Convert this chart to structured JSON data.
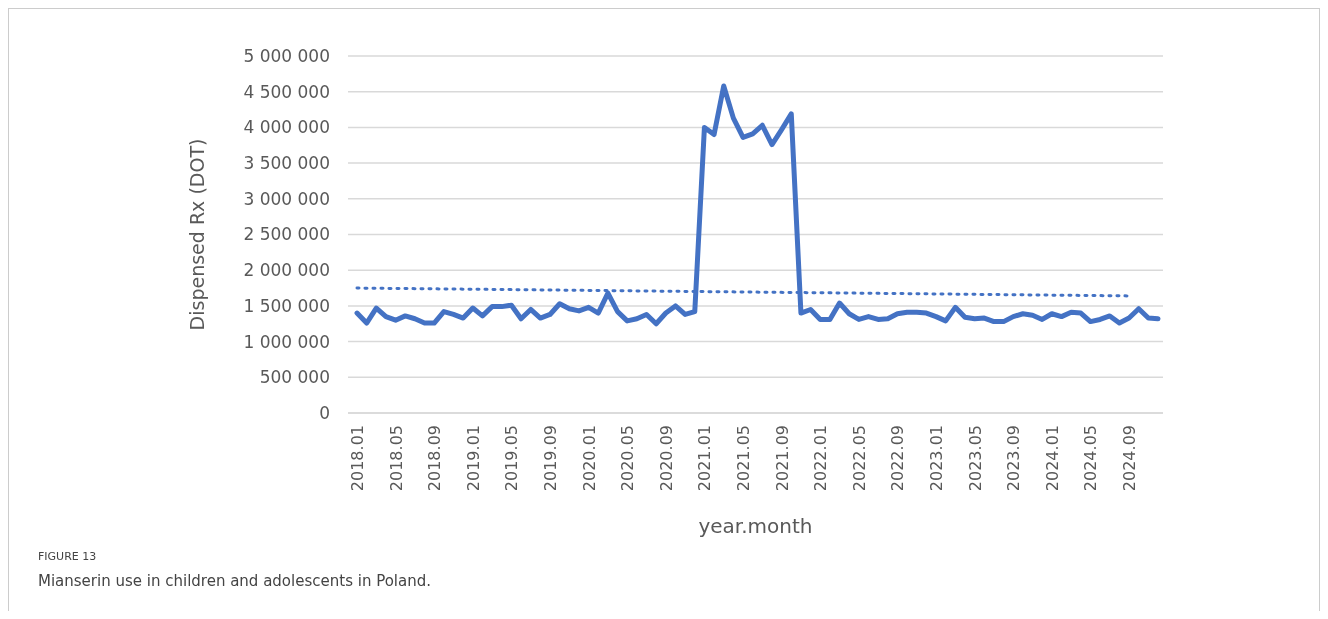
{
  "chart_data": {
    "type": "line",
    "xlabel": "year.month",
    "ylabel": "Dispensed Rx (DOT)",
    "categories": [
      "2018.01",
      null,
      null,
      null,
      "2018.05",
      null,
      null,
      null,
      "2018.09",
      null,
      null,
      null,
      "2019.01",
      null,
      null,
      null,
      "2019.05",
      null,
      null,
      null,
      "2019.09",
      null,
      null,
      null,
      "2020.01",
      null,
      null,
      null,
      "2020.05",
      null,
      null,
      null,
      "2020.09",
      null,
      null,
      null,
      "2021.01",
      null,
      null,
      null,
      "2021.05",
      null,
      null,
      null,
      "2021.09",
      null,
      null,
      null,
      "2022.01",
      null,
      null,
      null,
      "2022.05",
      null,
      null,
      null,
      "2022.09",
      null,
      null,
      null,
      "2023.01",
      null,
      null,
      null,
      "2023.05",
      null,
      null,
      null,
      "2023.09",
      null,
      null,
      null,
      "2024.01",
      null,
      null,
      null,
      "2024.05",
      null,
      null,
      null,
      "2024.09",
      null,
      null,
      null
    ],
    "series": [
      {
        "color": "#4472c4",
        "line_style": "solid",
        "values": [
          1400000,
          1260000,
          1470000,
          1350000,
          1300000,
          1360000,
          1320000,
          1260000,
          1260000,
          1420000,
          1380000,
          1330000,
          1470000,
          1360000,
          1490000,
          1490000,
          1510000,
          1320000,
          1450000,
          1330000,
          1380000,
          1530000,
          1460000,
          1430000,
          1480000,
          1400000,
          1680000,
          1420000,
          1290000,
          1320000,
          1380000,
          1250000,
          1400000,
          1500000,
          1380000,
          1420000,
          4000000,
          3900000,
          4580000,
          4130000,
          3860000,
          3910000,
          4030000,
          3760000,
          3970000,
          4190000,
          1400000,
          1450000,
          1310000,
          1310000,
          1540000,
          1390000,
          1310000,
          1350000,
          1310000,
          1320000,
          1390000,
          1410000,
          1410000,
          1400000,
          1350000,
          1290000,
          1480000,
          1340000,
          1320000,
          1330000,
          1280000,
          1280000,
          1350000,
          1390000,
          1370000,
          1310000,
          1390000,
          1350000,
          1410000,
          1400000,
          1280000,
          1310000,
          1360000,
          1260000,
          1330000,
          1460000,
          1330000,
          1320000
        ]
      },
      {
        "type": "line",
        "color": "#4472c4",
        "line_style": "dotted",
        "x": [
          "2018.01",
          "2024.09"
        ],
        "values": [
          1750000,
          1640000
        ]
      }
    ],
    "ylim": [
      0,
      5000000
    ],
    "yticks": [
      0,
      {
        "value": 500000,
        "label": "500 000"
      },
      {
        "value": 1000000,
        "label": "1 000 000"
      },
      {
        "value": 1500000,
        "label": "1 500 000"
      },
      {
        "value": 2000000,
        "label": "2 000 000"
      },
      {
        "value": 2500000,
        "label": "2 500 000"
      },
      {
        "value": 3000000,
        "label": "3 000 000"
      },
      {
        "value": 3500000,
        "label": "3 500 000"
      },
      {
        "value": 4000000,
        "label": "4 000 000"
      },
      {
        "value": 4500000,
        "label": "4 500 000"
      },
      {
        "value": 5000000,
        "label": "5 000 000"
      }
    ],
    "grid": "y",
    "annotations": [
      "FIGURE 13",
      "Mianserin use in children and adolescents in Poland."
    ]
  }
}
